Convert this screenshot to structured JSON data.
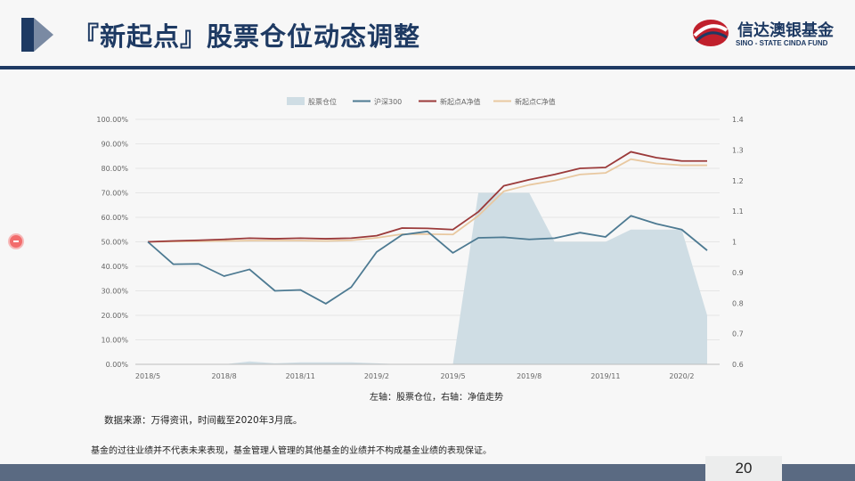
{
  "header": {
    "title": "『新起点』股票仓位动态调整",
    "logo_cn": "信达澳银基金",
    "logo_en": "SINO - STATE CINDA FUND"
  },
  "chart_data": {
    "type": "line",
    "x": [
      "2018/5",
      "2018/6",
      "2018/7",
      "2018/8",
      "2018/9",
      "2018/10",
      "2018/11",
      "2018/12",
      "2019/1",
      "2019/2",
      "2019/3",
      "2019/4",
      "2019/5",
      "2019/6",
      "2019/7",
      "2019/8",
      "2019/9",
      "2019/10",
      "2019/11",
      "2019/12",
      "2020/1",
      "2020/2",
      "2020/3"
    ],
    "x_tick_labels": [
      "2018/5",
      "2018/8",
      "2018/11",
      "2019/2",
      "2019/5",
      "2019/8",
      "2019/11",
      "2020/2"
    ],
    "y_left_ticks": [
      "0.00%",
      "10.00%",
      "20.00%",
      "30.00%",
      "40.00%",
      "50.00%",
      "60.00%",
      "70.00%",
      "80.00%",
      "90.00%",
      "100.00%"
    ],
    "y_right_ticks": [
      "0.6",
      "0.7",
      "0.8",
      "0.9",
      "1",
      "1.1",
      "1.2",
      "1.3",
      "1.4"
    ],
    "ylim_left": [
      0,
      100
    ],
    "ylim_right": [
      0.6,
      1.4
    ],
    "legend_position": "top",
    "grid": true,
    "series": [
      {
        "name": "股票仓位",
        "kind": "area",
        "axis": "left",
        "color": "#cfdde4",
        "values": [
          0,
          0,
          0,
          0,
          1.2,
          0.4,
          0.8,
          0.8,
          0.8,
          0.4,
          0,
          0,
          0,
          70,
          70,
          70,
          50,
          50,
          50,
          55,
          55,
          55,
          20
        ]
      },
      {
        "name": "沪深300",
        "kind": "line",
        "axis": "right",
        "color": "#4d7a92",
        "values": [
          1.0,
          0.927,
          0.928,
          0.888,
          0.91,
          0.84,
          0.843,
          0.798,
          0.852,
          0.967,
          1.023,
          1.034,
          0.964,
          1.013,
          1.015,
          1.008,
          1.012,
          1.03,
          1.016,
          1.085,
          1.059,
          1.04,
          0.972
        ]
      },
      {
        "name": "新起点A净值",
        "kind": "line",
        "axis": "right",
        "color": "#9b3a3a",
        "values": [
          1.0,
          1.003,
          1.005,
          1.008,
          1.012,
          1.01,
          1.012,
          1.01,
          1.012,
          1.02,
          1.045,
          1.044,
          1.04,
          1.098,
          1.183,
          1.203,
          1.22,
          1.24,
          1.243,
          1.294,
          1.275,
          1.264,
          1.264
        ]
      },
      {
        "name": "新起点C净值",
        "kind": "line",
        "axis": "right",
        "color": "#e8c8a0",
        "values": [
          1.0,
          1.001,
          1.002,
          1.003,
          1.004,
          1.004,
          1.004,
          1.003,
          1.005,
          1.013,
          1.025,
          1.025,
          1.024,
          1.085,
          1.165,
          1.186,
          1.2,
          1.22,
          1.225,
          1.27,
          1.256,
          1.25,
          1.25
        ]
      }
    ],
    "xlabel": "左轴：股票仓位，右轴：净值走势"
  },
  "notes": {
    "source": "数据来源：万得资讯，时间截至2020年3月底。",
    "disclaimer": "基金的过往业绩并不代表未来表现，基金管理人管理的其他基金的业绩并不构成基金业绩的表现保证。"
  },
  "footer": {
    "page_number": "20"
  }
}
